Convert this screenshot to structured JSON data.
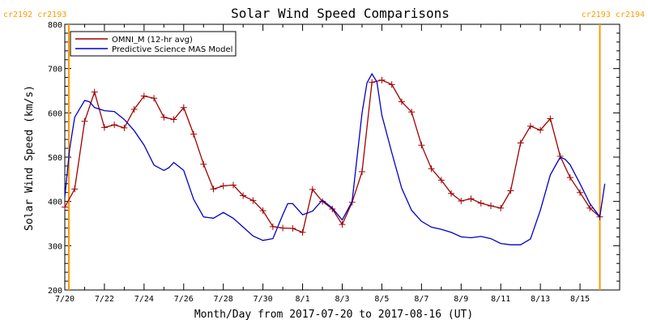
{
  "chart_data": {
    "type": "line",
    "title": "Solar Wind Speed Comparisons",
    "xlabel": "Month/Day from 2017-07-20 to 2017-08-16 (UT)",
    "ylabel": "Solar Wind Speed (km/s)",
    "xlim": [
      "2017-07-20T00:00",
      "2017-08-17T00:00"
    ],
    "ylim": [
      200,
      800
    ],
    "x_tick_labels": [
      "7/20",
      "7/22",
      "7/24",
      "7/26",
      "7/28",
      "7/30",
      "8/1",
      "8/3",
      "8/5",
      "8/7",
      "8/9",
      "8/11",
      "8/13",
      "8/15"
    ],
    "y_tick_labels": [
      "200",
      "300",
      "400",
      "500",
      "600",
      "700",
      "800"
    ],
    "legend_placement": "top-left",
    "carrington_markers": [
      {
        "label": "cr2192 cr2193",
        "x": "2017-07-20T00:00",
        "side": "left"
      },
      {
        "label": "cr2193 cr2194",
        "x": "2017-08-16T00:00",
        "side": "right"
      }
    ],
    "colors": {
      "omni": "#a00000",
      "model": "#0000c8",
      "cr_marker": "#ff9900"
    },
    "series": [
      {
        "name": "OMNI_M (12-hr avg)",
        "marker": "plus",
        "x": [
          "2017-07-20T00:00",
          "2017-07-20T12:00",
          "2017-07-21T00:00",
          "2017-07-21T12:00",
          "2017-07-22T00:00",
          "2017-07-22T12:00",
          "2017-07-23T00:00",
          "2017-07-23T12:00",
          "2017-07-24T00:00",
          "2017-07-24T12:00",
          "2017-07-25T00:00",
          "2017-07-25T12:00",
          "2017-07-26T00:00",
          "2017-07-26T12:00",
          "2017-07-27T00:00",
          "2017-07-27T12:00",
          "2017-07-28T00:00",
          "2017-07-28T12:00",
          "2017-07-29T00:00",
          "2017-07-29T12:00",
          "2017-07-30T00:00",
          "2017-07-30T12:00",
          "2017-07-31T00:00",
          "2017-07-31T12:00",
          "2017-08-01T00:00",
          "2017-08-01T12:00",
          "2017-08-02T00:00",
          "2017-08-02T12:00",
          "2017-08-03T00:00",
          "2017-08-03T12:00",
          "2017-08-04T00:00",
          "2017-08-04T12:00",
          "2017-08-05T00:00",
          "2017-08-05T12:00",
          "2017-08-06T00:00",
          "2017-08-06T12:00",
          "2017-08-07T00:00",
          "2017-08-07T12:00",
          "2017-08-08T00:00",
          "2017-08-08T12:00",
          "2017-08-09T00:00",
          "2017-08-09T12:00",
          "2017-08-10T00:00",
          "2017-08-10T12:00",
          "2017-08-11T00:00",
          "2017-08-11T12:00",
          "2017-08-12T00:00",
          "2017-08-12T12:00",
          "2017-08-13T00:00",
          "2017-08-13T12:00",
          "2017-08-14T00:00",
          "2017-08-14T12:00",
          "2017-08-15T00:00",
          "2017-08-15T12:00",
          "2017-08-16T00:00"
        ],
        "values": [
          387,
          428,
          581,
          647,
          567,
          573,
          566,
          608,
          638,
          633,
          590,
          585,
          612,
          552,
          484,
          428,
          435,
          437,
          413,
          402,
          379,
          343,
          340,
          339,
          330,
          427,
          400,
          383,
          348,
          398,
          467,
          669,
          674,
          664,
          625,
          602,
          527,
          474,
          448,
          418,
          401,
          406,
          396,
          390,
          385,
          424,
          532,
          570,
          561,
          587,
          502,
          454,
          420,
          385,
          365
        ]
      },
      {
        "name": "Predictive Science MAS Model",
        "x": [
          "2017-07-20T00:00",
          "2017-07-20T06:00",
          "2017-07-20T12:00",
          "2017-07-21T00:00",
          "2017-07-21T06:00",
          "2017-07-21T12:00",
          "2017-07-22T00:00",
          "2017-07-22T12:00",
          "2017-07-23T00:00",
          "2017-07-23T12:00",
          "2017-07-24T00:00",
          "2017-07-24T12:00",
          "2017-07-25T00:00",
          "2017-07-25T06:00",
          "2017-07-25T12:00",
          "2017-07-26T00:00",
          "2017-07-26T12:00",
          "2017-07-27T00:00",
          "2017-07-27T12:00",
          "2017-07-28T00:00",
          "2017-07-28T12:00",
          "2017-07-29T00:00",
          "2017-07-29T12:00",
          "2017-07-30T00:00",
          "2017-07-30T12:00",
          "2017-07-31T00:00",
          "2017-07-31T06:00",
          "2017-07-31T12:00",
          "2017-08-01T00:00",
          "2017-08-01T12:00",
          "2017-08-02T00:00",
          "2017-08-02T12:00",
          "2017-08-03T00:00",
          "2017-08-03T12:00",
          "2017-08-04T00:00",
          "2017-08-04T06:00",
          "2017-08-04T12:00",
          "2017-08-04T18:00",
          "2017-08-05T00:00",
          "2017-08-05T12:00",
          "2017-08-06T00:00",
          "2017-08-06T12:00",
          "2017-08-07T00:00",
          "2017-08-07T12:00",
          "2017-08-08T00:00",
          "2017-08-08T12:00",
          "2017-08-09T00:00",
          "2017-08-09T12:00",
          "2017-08-10T00:00",
          "2017-08-10T12:00",
          "2017-08-11T00:00",
          "2017-08-11T12:00",
          "2017-08-12T00:00",
          "2017-08-12T12:00",
          "2017-08-13T00:00",
          "2017-08-13T12:00",
          "2017-08-14T00:00",
          "2017-08-14T06:00",
          "2017-08-14T12:00",
          "2017-08-15T00:00",
          "2017-08-15T12:00",
          "2017-08-16T00:00",
          "2017-08-16T06:00"
        ],
        "values": [
          410,
          520,
          590,
          628,
          625,
          612,
          605,
          603,
          585,
          560,
          527,
          482,
          470,
          476,
          488,
          470,
          405,
          365,
          362,
          375,
          362,
          342,
          322,
          312,
          316,
          370,
          395,
          395,
          370,
          378,
          403,
          385,
          358,
          400,
          600,
          668,
          688,
          670,
          595,
          510,
          430,
          380,
          355,
          342,
          337,
          330,
          320,
          318,
          321,
          316,
          305,
          302,
          302,
          315,
          380,
          460,
          500,
          495,
          483,
          440,
          395,
          365,
          440
        ]
      }
    ]
  }
}
